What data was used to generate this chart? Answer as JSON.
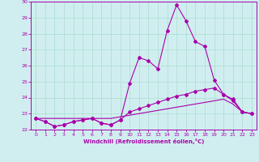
{
  "x": [
    0,
    1,
    2,
    3,
    4,
    5,
    6,
    7,
    8,
    9,
    10,
    11,
    12,
    13,
    14,
    15,
    16,
    17,
    18,
    19,
    20,
    21,
    22,
    23
  ],
  "line1": [
    22.7,
    22.5,
    22.2,
    22.3,
    22.5,
    22.6,
    22.7,
    22.4,
    22.3,
    22.6,
    24.9,
    26.5,
    26.3,
    25.8,
    28.2,
    29.8,
    28.8,
    27.5,
    27.2,
    25.1,
    24.2,
    23.9,
    23.1,
    23.0
  ],
  "line2": [
    22.7,
    22.5,
    22.2,
    22.3,
    22.5,
    22.6,
    22.7,
    22.4,
    22.3,
    22.6,
    23.1,
    23.3,
    23.5,
    23.7,
    23.9,
    24.1,
    24.2,
    24.4,
    24.5,
    24.6,
    24.2,
    23.8,
    23.1,
    23.0
  ],
  "line3": [
    22.7,
    22.7,
    22.7,
    22.7,
    22.7,
    22.7,
    22.7,
    22.7,
    22.7,
    22.8,
    22.9,
    23.0,
    23.1,
    23.2,
    23.3,
    23.4,
    23.5,
    23.6,
    23.7,
    23.8,
    23.9,
    23.6,
    23.1,
    23.0
  ],
  "line_color": "#aa00aa",
  "bg_color": "#d0eef0",
  "grid_color": "#aaddcc",
  "xlabel": "Windchill (Refroidissement éolien,°C)",
  "xlim": [
    -0.5,
    23.5
  ],
  "ylim": [
    22,
    30
  ],
  "yticks": [
    22,
    23,
    24,
    25,
    26,
    27,
    28,
    29,
    30
  ],
  "xticks": [
    0,
    1,
    2,
    3,
    4,
    5,
    6,
    7,
    8,
    9,
    10,
    11,
    12,
    13,
    14,
    15,
    16,
    17,
    18,
    19,
    20,
    21,
    22,
    23
  ]
}
